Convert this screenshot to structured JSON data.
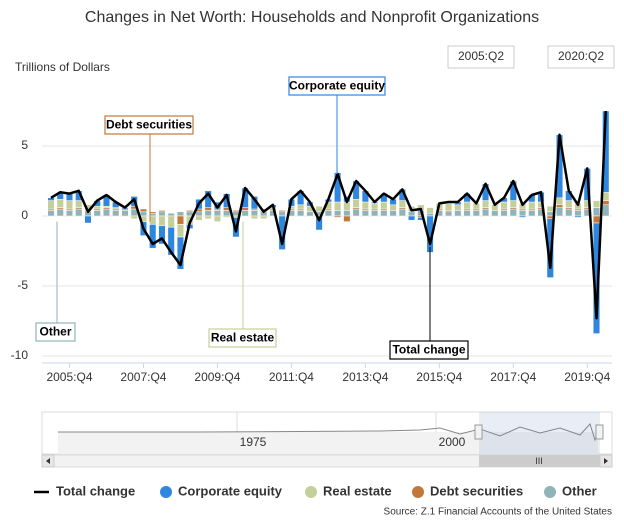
{
  "chart_data": {
    "type": "bar",
    "title": "Changes in Net Worth: Households and Nonprofit Organizations",
    "y_axis_label": "Trillions of Dollars",
    "range_selector": [
      "2005:Q2",
      "2020:Q2"
    ],
    "source": "Source: Z.1 Financial Accounts of the United States",
    "navigator_labels": [
      "1975",
      "2000"
    ],
    "navigator_scroll_label": "III",
    "annotations": [
      {
        "text": "Corporate equity",
        "color": "#2e86de"
      },
      {
        "text": "Debt securities",
        "color": "#c0793a"
      },
      {
        "text": "Other",
        "color": "#8fb3b8"
      },
      {
        "text": "Real estate",
        "color": "#c4cf9a"
      },
      {
        "text": "Total change",
        "color": "#000000"
      }
    ],
    "categories": [
      null,
      null,
      "2005:Q4",
      null,
      null,
      null,
      null,
      null,
      null,
      null,
      "2007:Q4",
      null,
      null,
      null,
      null,
      null,
      null,
      null,
      "2009:Q4",
      null,
      null,
      null,
      null,
      null,
      null,
      null,
      "2011:Q4",
      null,
      null,
      null,
      null,
      null,
      null,
      null,
      "2013:Q4",
      null,
      null,
      null,
      null,
      null,
      null,
      null,
      "2015:Q4",
      null,
      null,
      null,
      null,
      null,
      null,
      null,
      "2017:Q4",
      null,
      null,
      null,
      null,
      null,
      null,
      null,
      "2019:Q4",
      null,
      null
    ],
    "ylim": [
      -10.5,
      8
    ],
    "yticks": [
      -10,
      -5,
      0,
      5
    ],
    "grid": true,
    "series": [
      {
        "name": "Total change",
        "type": "line",
        "color": "#000000",
        "values": [
          1.3,
          1.7,
          1.6,
          1.8,
          0.3,
          1.1,
          1.5,
          1.0,
          0.6,
          1.2,
          -0.9,
          -2.0,
          -1.6,
          -2.6,
          -3.5,
          -0.5,
          0.9,
          1.6,
          0.6,
          1.5,
          -1.1,
          2.0,
          1.2,
          0.3,
          0.8,
          -2.0,
          1.2,
          1.8,
          1.0,
          -0.3,
          1.2,
          3.0,
          1.0,
          2.5,
          1.8,
          1.0,
          1.6,
          1.2,
          1.9,
          0.4,
          0.5,
          -2.0,
          0.9,
          1.0,
          1.0,
          1.6,
          0.9,
          2.3,
          0.8,
          1.3,
          2.5,
          0.8,
          1.5,
          1.7,
          -3.7,
          5.8,
          1.8,
          0.8,
          3.4,
          -7.3,
          7.5
        ]
      },
      {
        "name": "Corporate equity",
        "color": "#2e86de",
        "values": [
          0.2,
          0.5,
          0.5,
          0.7,
          -0.5,
          0.4,
          0.8,
          0.4,
          0.1,
          0.7,
          -1.0,
          -1.7,
          -1.3,
          -2.0,
          -2.3,
          -0.3,
          0.7,
          1.2,
          0.5,
          1.0,
          -1.4,
          1.4,
          0.9,
          0.1,
          0.2,
          -2.4,
          0.5,
          1.0,
          0.3,
          -0.9,
          0.2,
          2.1,
          0.4,
          1.3,
          0.8,
          0.1,
          0.6,
          0.4,
          0.8,
          -0.3,
          -0.2,
          -2.6,
          0.0,
          0.1,
          0.2,
          0.6,
          0.0,
          1.2,
          0.0,
          0.3,
          1.4,
          -0.1,
          0.5,
          0.7,
          -4.2,
          4.5,
          0.7,
          -0.1,
          2.3,
          -7.9,
          5.8
        ]
      },
      {
        "name": "Real estate",
        "color": "#c4cf9a",
        "values": [
          0.6,
          0.6,
          0.6,
          0.5,
          0.4,
          0.2,
          0.1,
          0.1,
          0.0,
          -0.2,
          -0.4,
          -0.6,
          -0.7,
          -0.8,
          -0.9,
          -0.6,
          -0.3,
          -0.2,
          -0.4,
          -0.1,
          -0.1,
          0.0,
          -0.2,
          -0.2,
          0.1,
          0.0,
          0.2,
          0.3,
          0.4,
          0.4,
          0.5,
          0.6,
          0.6,
          0.6,
          0.5,
          0.4,
          0.5,
          0.4,
          0.5,
          0.4,
          0.4,
          0.4,
          0.4,
          0.5,
          0.4,
          0.5,
          0.4,
          0.5,
          0.4,
          0.5,
          0.5,
          0.4,
          0.5,
          0.4,
          0.4,
          0.5,
          0.5,
          0.4,
          0.5,
          0.5,
          0.6
        ]
      },
      {
        "name": "Debt securities",
        "color": "#c0793a",
        "values": [
          0.1,
          0.1,
          0.1,
          0.1,
          0.1,
          0.1,
          0.1,
          0.1,
          0.1,
          0.2,
          0.2,
          0.1,
          0.1,
          0.0,
          -0.6,
          0.1,
          0.2,
          0.2,
          0.1,
          0.2,
          0.1,
          0.2,
          0.1,
          0.1,
          0.1,
          0.1,
          0.1,
          0.1,
          0.0,
          -0.1,
          0.1,
          -0.1,
          -0.4,
          0.1,
          0.1,
          0.1,
          0.1,
          0.0,
          0.1,
          0.0,
          -0.1,
          0.0,
          0.1,
          0.1,
          0.0,
          0.1,
          0.1,
          0.1,
          0.0,
          0.1,
          0.1,
          0.1,
          0.1,
          0.1,
          -0.2,
          0.2,
          0.1,
          0.1,
          0.1,
          -0.5,
          0.3
        ]
      },
      {
        "name": "Other",
        "color": "#8fb3b8",
        "values": [
          0.4,
          0.5,
          0.4,
          0.5,
          0.3,
          0.4,
          0.5,
          0.4,
          0.4,
          0.5,
          0.3,
          0.2,
          0.3,
          0.2,
          0.3,
          0.3,
          0.3,
          0.4,
          0.4,
          0.4,
          0.3,
          0.4,
          0.4,
          0.3,
          0.4,
          0.3,
          0.4,
          0.4,
          0.3,
          0.3,
          0.4,
          0.4,
          0.4,
          0.5,
          0.4,
          0.4,
          0.4,
          0.4,
          0.5,
          0.3,
          0.4,
          0.2,
          0.4,
          0.3,
          0.4,
          0.4,
          0.4,
          0.5,
          0.4,
          0.4,
          0.5,
          0.4,
          0.4,
          0.5,
          0.3,
          0.6,
          0.5,
          0.4,
          0.5,
          0.6,
          0.8
        ]
      }
    ]
  }
}
